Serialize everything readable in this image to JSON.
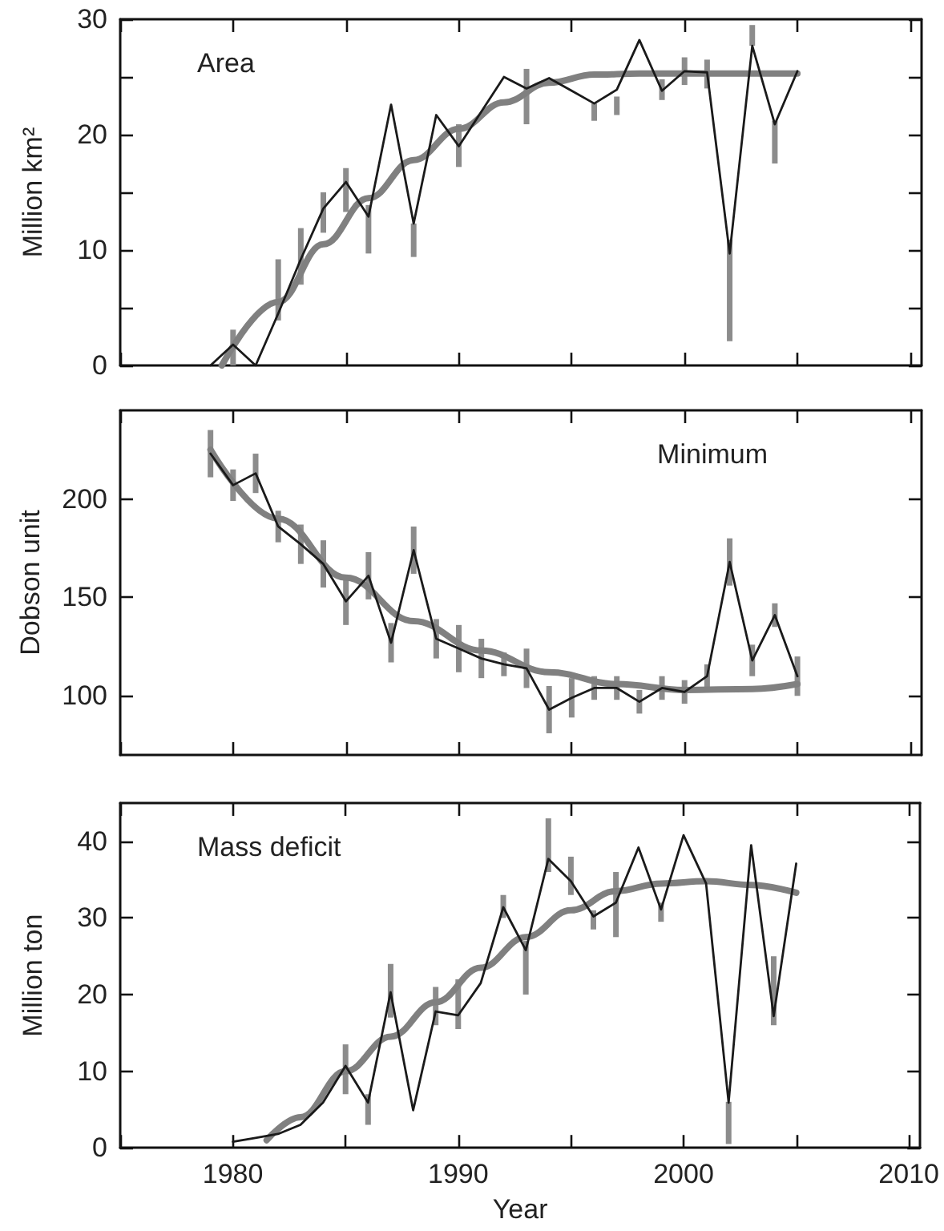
{
  "chart_data": [
    {
      "type": "line",
      "title": "Area",
      "ylabel": "Million km²",
      "marker": "none",
      "tick_labels": "y",
      "xlim": [
        1975,
        2010.5
      ],
      "xticks": [
        {
          "value": 1975,
          "label": null
        },
        {
          "value": 1980,
          "label": null
        },
        {
          "value": 1985,
          "label": null
        },
        {
          "value": 1990,
          "label": null
        },
        {
          "value": 1995,
          "label": null
        },
        {
          "value": 2000,
          "label": null
        },
        {
          "value": 2005,
          "label": null
        },
        {
          "value": 2010,
          "label": null
        }
      ],
      "ylim": [
        0,
        30
      ],
      "yticks": [
        0,
        {
          "value": 5,
          "label": null
        },
        10,
        {
          "value": 15,
          "label": null
        },
        20,
        {
          "value": 25,
          "label": null
        },
        30
      ],
      "x": [
        1979,
        1980,
        1981,
        1982,
        1983,
        1984,
        1985,
        1986,
        1987,
        1988,
        1989,
        1990,
        1991,
        1992,
        1993,
        1994,
        1995,
        1996,
        1997,
        1998,
        1999,
        2000,
        2001,
        2002,
        2003,
        2004,
        2005
      ],
      "series": [
        {
          "color": "#1a1a1a",
          "values": [
            0,
            1.8,
            0,
            4.5,
            9.2,
            13.6,
            15.9,
            12.9,
            22.6,
            12.3,
            21.7,
            19.0,
            22,
            25.0,
            24.0,
            24.9,
            23.8,
            22.7,
            23.9,
            28.2,
            23.8,
            25.5,
            25.4,
            9.7,
            27.7,
            20.9,
            25.5
          ],
          "errors": [
            null,
            [
              0,
              3.1
            ],
            null,
            [
              3.9,
              9.2
            ],
            [
              7,
              11.9
            ],
            [
              11.5,
              15
            ],
            [
              13.3,
              17.1
            ],
            [
              9.7,
              13.9
            ],
            null,
            [
              9.4,
              12.3
            ],
            null,
            [
              17.2,
              20.9
            ],
            null,
            null,
            [
              20.9,
              25.7
            ],
            null,
            null,
            [
              21.2,
              22.7
            ],
            [
              21.7,
              23.3
            ],
            null,
            [
              23,
              24.8
            ],
            [
              24.3,
              26.7
            ],
            [
              24,
              26.5
            ],
            [
              2.1,
              10.9
            ],
            [
              27.7,
              29.5
            ],
            [
              17.5,
              21.2
            ],
            null
          ]
        },
        {
          "color": "#808080",
          "x": [
            1979.5,
            1982,
            1984,
            1986,
            1988,
            1990,
            1992,
            1994,
            1996,
            1998,
            2000,
            2002,
            2005
          ],
          "values": [
            0,
            5.5,
            10.5,
            14.5,
            17.8,
            20.5,
            22.8,
            24.5,
            25.2,
            25.3,
            25.3,
            25.3,
            25.3
          ]
        }
      ]
    },
    {
      "type": "line",
      "title": "Minimum",
      "ylabel": "Dobson unit",
      "marker": "none",
      "tick_labels": "y",
      "xlim": [
        1975,
        2010.5
      ],
      "xticks": [
        {
          "value": 1975,
          "label": null
        },
        {
          "value": 1980,
          "label": null
        },
        {
          "value": 1985,
          "label": null
        },
        {
          "value": 1990,
          "label": null
        },
        {
          "value": 1995,
          "label": null
        },
        {
          "value": 2000,
          "label": null
        },
        {
          "value": 2005,
          "label": null
        },
        {
          "value": 2010,
          "label": null
        }
      ],
      "ylim": [
        70,
        245
      ],
      "yticks": [
        100,
        150,
        200
      ],
      "x": [
        1979,
        1980,
        1981,
        1982,
        1983,
        1984,
        1985,
        1986,
        1987,
        1988,
        1989,
        1990,
        1991,
        1992,
        1993,
        1994,
        1995,
        1996,
        1997,
        1998,
        1999,
        2000,
        2001,
        2002,
        2003,
        2004,
        2005
      ],
      "series": [
        {
          "color": "#1a1a1a",
          "values": [
            223,
            207,
            213,
            186,
            177,
            167,
            148,
            161,
            127,
            174,
            129,
            124,
            119,
            116,
            114,
            93,
            99,
            104,
            104,
            97,
            104,
            102,
            110,
            168,
            118,
            141,
            110
          ],
          "errors": [
            12,
            8,
            10,
            8,
            10,
            12,
            12,
            12,
            10,
            12,
            10,
            12,
            10,
            6,
            10,
            12,
            10,
            6,
            6,
            6,
            6,
            6,
            6,
            12,
            8,
            6,
            10
          ]
        },
        {
          "color": "#808080",
          "x": [
            1979,
            1982,
            1985,
            1988,
            1991,
            1994,
            1997,
            2000,
            2003,
            2005
          ],
          "values": [
            225,
            190,
            160,
            138,
            123,
            112,
            106,
            103,
            103.5,
            106
          ]
        }
      ]
    },
    {
      "type": "line",
      "title": "Mass deficit",
      "xlabel": "Year",
      "ylabel": "Million ton",
      "marker": "none",
      "xlim": [
        1975,
        2010.5
      ],
      "xticks": [
        {
          "value": 1975,
          "label": null
        },
        1980,
        {
          "value": 1985,
          "label": null
        },
        1990,
        {
          "value": 1995,
          "label": null
        },
        2000,
        {
          "value": 2005,
          "label": null
        },
        2010
      ],
      "ylim": [
        0,
        45
      ],
      "yticks": [
        0,
        10,
        20,
        30,
        40
      ],
      "x": [
        1980,
        1981,
        1982,
        1983,
        1984,
        1985,
        1986,
        1987,
        1988,
        1989,
        1990,
        1991,
        1992,
        1993,
        1994,
        1995,
        1996,
        1997,
        1998,
        1999,
        2000,
        2001,
        2002,
        2003,
        2004,
        2005
      ],
      "series": [
        {
          "color": "#1a1a1a",
          "values": [
            0.8,
            1.3,
            1.8,
            3,
            5.9,
            10.7,
            5.9,
            20.3,
            4.9,
            17.8,
            17.3,
            21.5,
            31.4,
            25.8,
            37.7,
            34.8,
            30.2,
            32,
            39.2,
            31.1,
            40.8,
            34.5,
            5.9,
            39.5,
            17.2,
            37.1
          ],
          "errors": [
            null,
            null,
            null,
            null,
            null,
            [
              7,
              13.5
            ],
            [
              3,
              7
            ],
            [
              17,
              24
            ],
            null,
            [
              16,
              21
            ],
            [
              15.5,
              22
            ],
            null,
            [
              30,
              33
            ],
            [
              20,
              27
            ],
            [
              36,
              43
            ],
            [
              33,
              38
            ],
            [
              28.5,
              31
            ],
            [
              27.5,
              36
            ],
            null,
            [
              29.5,
              32
            ],
            null,
            null,
            [
              0.5,
              6
            ],
            null,
            [
              16,
              25
            ],
            null
          ]
        },
        {
          "color": "#808080",
          "x": [
            1981.5,
            1983,
            1985,
            1987,
            1989,
            1991,
            1993,
            1995,
            1997,
            1999,
            2001,
            2003,
            2005
          ],
          "values": [
            1,
            4,
            10,
            14.5,
            19,
            23.5,
            27.5,
            31,
            33.5,
            34.5,
            34.8,
            34.3,
            33.3
          ]
        }
      ]
    }
  ]
}
